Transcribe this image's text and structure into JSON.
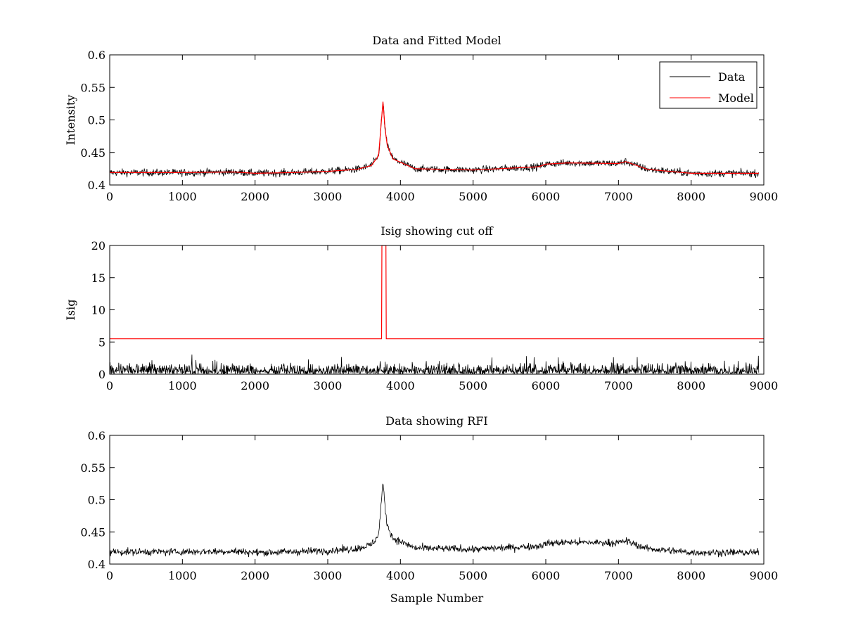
{
  "chart_data": [
    {
      "type": "line",
      "title": "Data and Fitted Model",
      "xlabel": "",
      "ylabel": "Intensity",
      "xlim": [
        0,
        9000
      ],
      "ylim": [
        0.4,
        0.6
      ],
      "xticks": [
        "0",
        "1000",
        "2000",
        "3000",
        "4000",
        "5000",
        "6000",
        "7000",
        "8000",
        "9000"
      ],
      "yticks": [
        "0.4",
        "0.45",
        "0.5",
        "0.55",
        "0.6"
      ],
      "grid": false,
      "legend": {
        "position": "top-right",
        "entries": [
          {
            "name": "Data",
            "color": "#000000"
          },
          {
            "name": "Model",
            "color": "#ff0000"
          }
        ]
      },
      "series": [
        {
          "name": "Data",
          "color": "#000000",
          "style": "noisy",
          "x": [
            0,
            1000,
            1700,
            2000,
            2500,
            3000,
            3400,
            3600,
            3700,
            3760,
            3790,
            3820,
            3900,
            4200,
            5000,
            5900,
            6000,
            6300,
            7000,
            7100,
            7400,
            8000,
            8930
          ],
          "y": [
            0.419,
            0.419,
            0.42,
            0.418,
            0.419,
            0.421,
            0.424,
            0.43,
            0.445,
            0.528,
            0.485,
            0.46,
            0.44,
            0.425,
            0.423,
            0.428,
            0.432,
            0.434,
            0.433,
            0.436,
            0.424,
            0.418,
            0.418
          ],
          "noise": 0.004
        },
        {
          "name": "Model",
          "color": "#ff0000",
          "style": "smooth",
          "x": [
            0,
            1000,
            1700,
            2000,
            2500,
            3000,
            3400,
            3600,
            3700,
            3760,
            3790,
            3820,
            3900,
            4200,
            5000,
            5900,
            6000,
            6300,
            7000,
            7100,
            7400,
            8000,
            8930
          ],
          "y": [
            0.419,
            0.419,
            0.42,
            0.418,
            0.419,
            0.421,
            0.424,
            0.43,
            0.445,
            0.528,
            0.485,
            0.46,
            0.44,
            0.425,
            0.423,
            0.428,
            0.432,
            0.434,
            0.433,
            0.436,
            0.424,
            0.418,
            0.418
          ]
        }
      ]
    },
    {
      "type": "line",
      "title": "Isig showing cut off",
      "xlabel": "",
      "ylabel": "Isig",
      "xlim": [
        0,
        9000
      ],
      "ylim": [
        0,
        20
      ],
      "xticks": [
        "0",
        "1000",
        "2000",
        "3000",
        "4000",
        "5000",
        "6000",
        "7000",
        "8000",
        "9000"
      ],
      "yticks": [
        "0",
        "5",
        "10",
        "15",
        "20"
      ],
      "grid": false,
      "series": [
        {
          "name": "",
          "color": "#000000",
          "style": "noise-abs",
          "x": [
            0,
            8930
          ],
          "y": [
            0,
            0
          ],
          "noise": 1.0
        },
        {
          "name": "",
          "color": "#ff0000",
          "style": "step",
          "x": [
            0,
            3740,
            3745,
            3800,
            3805,
            9000
          ],
          "y": [
            5.5,
            5.5,
            20,
            20,
            5.5,
            5.5
          ]
        }
      ]
    },
    {
      "type": "line",
      "title": "Data showing RFI",
      "xlabel": "Sample Number",
      "ylabel": "",
      "xlim": [
        0,
        9000
      ],
      "ylim": [
        0.4,
        0.6
      ],
      "xticks": [
        "0",
        "1000",
        "2000",
        "3000",
        "4000",
        "5000",
        "6000",
        "7000",
        "8000",
        "9000"
      ],
      "yticks": [
        "0.4",
        "0.45",
        "0.5",
        "0.55",
        "0.6"
      ],
      "grid": false,
      "series": [
        {
          "name": "",
          "color": "#000000",
          "style": "noisy",
          "x": [
            0,
            1000,
            1700,
            2000,
            2500,
            3000,
            3400,
            3600,
            3700,
            3760,
            3790,
            3820,
            3900,
            4200,
            5000,
            5900,
            6000,
            6300,
            7000,
            7100,
            7400,
            8000,
            8930
          ],
          "y": [
            0.419,
            0.419,
            0.42,
            0.418,
            0.419,
            0.421,
            0.424,
            0.43,
            0.445,
            0.528,
            0.485,
            0.46,
            0.44,
            0.425,
            0.423,
            0.428,
            0.432,
            0.434,
            0.433,
            0.436,
            0.424,
            0.418,
            0.418
          ],
          "noise": 0.004
        }
      ]
    }
  ]
}
